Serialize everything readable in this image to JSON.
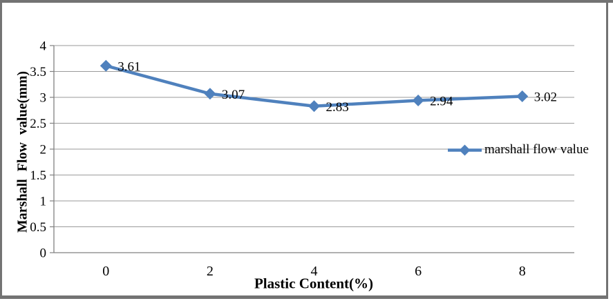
{
  "chart_data": {
    "type": "line",
    "title": "",
    "categories": [
      "0",
      "2",
      "4",
      "6",
      "8"
    ],
    "x": [
      0,
      2,
      4,
      6,
      8
    ],
    "series": [
      {
        "name": "marshall flow value",
        "values": [
          3.61,
          3.07,
          2.83,
          2.94,
          3.02
        ]
      }
    ],
    "data_labels": [
      "3.61",
      "3.07",
      "2.83",
      "2.94",
      "3.02"
    ],
    "xlabel": "Plastic Content(%)",
    "ylabel": "Marshall Flow value(mm)",
    "ylim": [
      0,
      4
    ],
    "ytick_step": 0.5,
    "ytick_labels": [
      "0",
      "0.5",
      "1",
      "1.5",
      "2",
      "2.5",
      "3",
      "3.5",
      "4"
    ],
    "grid": true,
    "legend": {
      "label": "marshall flow value",
      "position": "middle-right"
    },
    "colors": {
      "series": "#4F81BD",
      "gridline": "#9A9A9A",
      "axis": "#808080",
      "text": "#000000",
      "frame": "#737373"
    }
  }
}
